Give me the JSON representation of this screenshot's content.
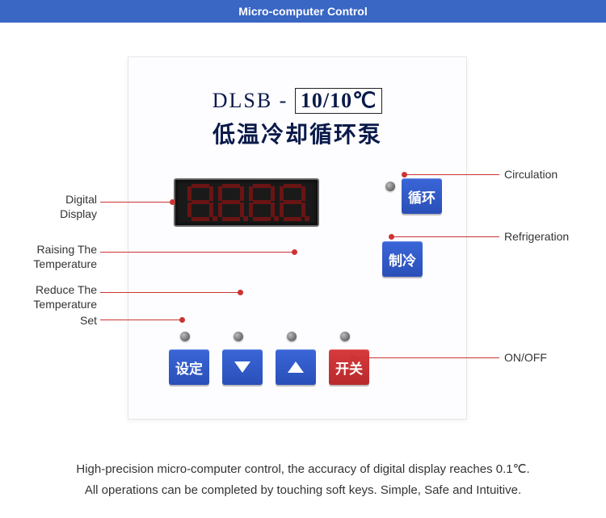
{
  "header": {
    "title": "Micro-computer Control",
    "bg_color": "#3a66c4",
    "text_color": "#ffffff"
  },
  "panel": {
    "model_prefix": "DLSB -",
    "model_value": "10/10℃",
    "cn_title": "低温冷却循环泵",
    "display_value": "8.8.8.8.",
    "display_bg": "#1a1a1a",
    "segment_off_color": "#6a1414"
  },
  "buttons": {
    "circulation": {
      "label": "循环",
      "color": "blue"
    },
    "refrigeration": {
      "label": "制冷",
      "color": "blue"
    },
    "set": {
      "label": "设定",
      "color": "blue"
    },
    "down": {
      "label": "▼",
      "color": "blue"
    },
    "up": {
      "label": "▲",
      "color": "blue"
    },
    "onoff": {
      "label": "开关",
      "color": "red"
    }
  },
  "callouts": {
    "digital_display": "Digital\nDisplay",
    "raise_temp": "Raising The\nTemperature",
    "reduce_temp": "Reduce The\nTemperature",
    "set": "Set",
    "circulation": "Circulation",
    "refrigeration": "Refrigeration",
    "onoff": "ON/OFF"
  },
  "footer": {
    "line1": "High-precision micro-computer control, the accuracy of digital display reaches 0.1℃.",
    "line2": "All operations can be completed by touching soft keys. Simple, Safe and Intuitive."
  },
  "colors": {
    "leader": "#cc3333",
    "btn_blue": "#2f55c4",
    "btn_red": "#c8353a",
    "panel_text": "#0a1a4a"
  }
}
